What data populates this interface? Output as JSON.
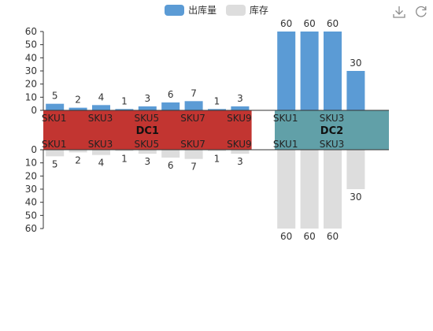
{
  "legend": {
    "items": [
      {
        "label": "出库量",
        "color": "#5b9bd5"
      },
      {
        "label": "库存",
        "color": "#dddddd"
      }
    ]
  },
  "toolbox": {
    "icons": [
      "download-icon",
      "refresh-icon"
    ]
  },
  "chart_data": {
    "type": "bar",
    "upper_axis": {
      "ticks": [
        0,
        10,
        20,
        30,
        40,
        50,
        60
      ],
      "ylim": [
        0,
        60
      ]
    },
    "lower_axis": {
      "ticks": [
        0,
        10,
        20,
        30,
        40,
        50,
        60
      ],
      "ylim": [
        0,
        60
      ],
      "inverse": true
    },
    "category_labels": [
      "SKU1",
      "",
      "SKU3",
      "",
      "SKU5",
      "",
      "SKU7",
      "",
      "SKU9",
      "",
      "SKU1",
      "",
      "SKU3",
      ""
    ],
    "groups": [
      {
        "name": "DC1",
        "color": "#c23531",
        "span": [
          0,
          8
        ]
      },
      {
        "name": "DC2",
        "color": "#61a0a8",
        "span": [
          10,
          13
        ]
      }
    ],
    "series": [
      {
        "name": "出库量",
        "color": "#5b9bd5",
        "values": [
          5,
          2,
          4,
          1,
          3,
          6,
          7,
          1,
          3,
          null,
          60,
          60,
          60,
          30
        ]
      },
      {
        "name": "库存",
        "color": "#dddddd",
        "values": [
          5,
          2,
          4,
          1,
          3,
          6,
          7,
          1,
          3,
          null,
          60,
          60,
          60,
          30
        ]
      }
    ]
  }
}
